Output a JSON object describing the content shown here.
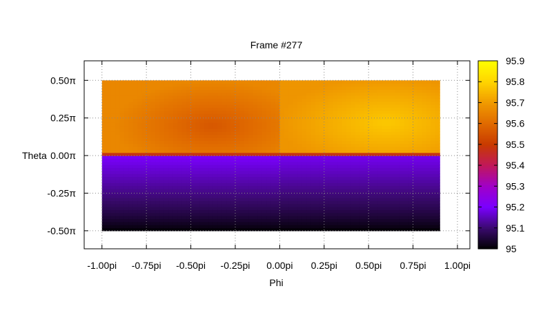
{
  "chart_data": {
    "type": "heatmap",
    "title": "Frame #277",
    "xlabel": "Phi",
    "ylabel": "Theta",
    "xlim": [
      -1.1,
      1.07
    ],
    "ylim": [
      -0.62,
      0.63
    ],
    "xticks": [
      {
        "value": -1.0,
        "label": "-1.00pi"
      },
      {
        "value": -0.75,
        "label": "-0.75pi"
      },
      {
        "value": -0.5,
        "label": "-0.50pi"
      },
      {
        "value": -0.25,
        "label": "-0.25pi"
      },
      {
        "value": 0.0,
        "label": "0.00pi"
      },
      {
        "value": 0.25,
        "label": "0.25pi"
      },
      {
        "value": 0.5,
        "label": "0.50pi"
      },
      {
        "value": 0.75,
        "label": "0.75pi"
      },
      {
        "value": 1.0,
        "label": "1.00pi"
      }
    ],
    "yticks": [
      {
        "value": 0.5,
        "label": "0.50π"
      },
      {
        "value": 0.25,
        "label": "0.25π"
      },
      {
        "value": 0.0,
        "label": "0.00π"
      },
      {
        "value": -0.25,
        "label": "-0.25π"
      },
      {
        "value": -0.5,
        "label": "-0.50π"
      }
    ],
    "data_extent": {
      "phi": [
        -1.0,
        0.9
      ],
      "theta": [
        -0.5,
        0.5
      ]
    },
    "grid": true,
    "colorbar": {
      "min": 95,
      "max": 95.9,
      "ticks": [
        "95",
        "95.1",
        "95.2",
        "95.3",
        "95.4",
        "95.5",
        "95.6",
        "95.7",
        "95.8",
        "95.9"
      ],
      "palette": [
        "#000000",
        "#3a0a6e",
        "#7a00ff",
        "#a000c8",
        "#c0185a",
        "#c83a00",
        "#e06a00",
        "#f09a00",
        "#ffd400",
        "#ffff00"
      ]
    },
    "regions": [
      {
        "phi": [
          -1.0,
          0.0
        ],
        "theta": [
          0.0,
          0.5
        ],
        "min": 95.56,
        "max": 95.66,
        "peak_low_at": [
          -0.38,
          0.2
        ]
      },
      {
        "phi": [
          0.0,
          0.9
        ],
        "theta": [
          0.0,
          0.5
        ],
        "min": 95.69,
        "max": 95.78,
        "peak_high_at": [
          0.6,
          0.22
        ]
      },
      {
        "phi": [
          -1.0,
          0.0
        ],
        "theta": [
          -0.5,
          0.0
        ],
        "top": 95.2,
        "bottom": 95.0
      },
      {
        "phi": [
          0.0,
          0.9
        ],
        "theta": [
          -0.5,
          0.0
        ],
        "top": 95.19,
        "bottom": 95.0
      }
    ],
    "equator_band": {
      "theta": [
        0.0,
        0.02
      ],
      "value": 95.48
    }
  }
}
